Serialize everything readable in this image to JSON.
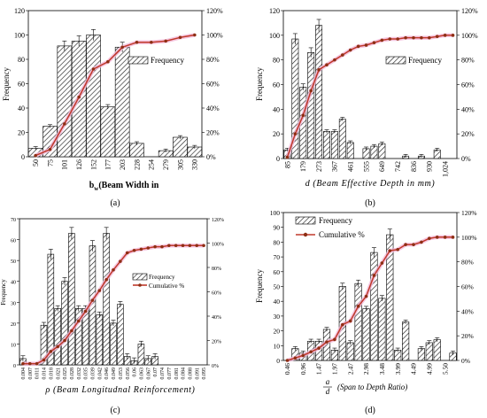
{
  "chart_data": [
    {
      "panel": "(a)",
      "type": "bar",
      "categories": [
        "50",
        "75",
        "101",
        "126",
        "152",
        "177",
        "203",
        "228",
        "254",
        "279",
        "305",
        "330"
      ],
      "series": [
        {
          "name": "Frequency",
          "type": "bar",
          "values": [
            7,
            25,
            91,
            95,
            100,
            41,
            90,
            11,
            0,
            5,
            16,
            8
          ]
        },
        {
          "name": "",
          "type": "line",
          "axis": "right",
          "values": [
            1,
            6,
            27,
            49,
            72,
            78,
            90,
            94,
            94,
            95,
            98,
            100
          ]
        }
      ],
      "ylabel": "Frequency",
      "xlabel_main": "b",
      "xlabel_sub": "w",
      "xlabel_rest": "(Beam Width in",
      "ylim": [
        0,
        120
      ],
      "y2lim": [
        0,
        120
      ],
      "yticks": [
        0,
        20,
        40,
        60,
        80,
        100,
        120
      ],
      "y2ticks": [
        0,
        20,
        40,
        60,
        80,
        100,
        120
      ],
      "y2_suffix": "%",
      "legend": "right-middle",
      "legend_entries": [
        "Frequency"
      ]
    },
    {
      "panel": "(b)",
      "type": "bar",
      "categories": [
        "85",
        "",
        "179",
        "",
        "273",
        "",
        "367",
        "",
        "461",
        "",
        "555",
        "",
        "649",
        "",
        "742",
        "",
        "836",
        "",
        "930",
        "",
        "1,024",
        ""
      ],
      "series": [
        {
          "name": "Frequency",
          "type": "bar",
          "values": [
            7,
            97,
            58,
            86,
            108,
            22,
            22,
            32,
            13,
            0,
            8,
            10,
            12,
            0,
            0,
            2,
            0,
            2,
            0,
            7,
            0,
            0
          ]
        },
        {
          "name": "",
          "type": "line",
          "axis": "right",
          "values": [
            1,
            20,
            35,
            55,
            72,
            76,
            80,
            84,
            88,
            91,
            92,
            94,
            96,
            97,
            97,
            98,
            98,
            98,
            98,
            99,
            100,
            100
          ]
        }
      ],
      "ylabel": "Frequency",
      "xlabel": "d (Beam Effective Depth in mm)",
      "ylim": [
        0,
        120
      ],
      "y2lim": [
        0,
        120
      ],
      "yticks": [
        0,
        20,
        40,
        60,
        80,
        100,
        120
      ],
      "y2ticks": [
        0,
        20,
        40,
        60,
        80,
        100,
        120
      ],
      "y2_suffix": "%",
      "legend": "right-middle",
      "legend_entries": [
        "Frequency"
      ]
    },
    {
      "panel": "(c)",
      "type": "bar",
      "categories": [
        "0.004",
        "0.007",
        "0.011",
        "0.014",
        "0.018",
        "0.021",
        "0.025",
        "0.028",
        "0.032",
        "0.035",
        "0.039",
        "0.042",
        "0.046",
        "0.049",
        "0.053",
        "0.056",
        "0.06",
        "0.063",
        "0.067",
        "0.07",
        "0.074",
        "0.077",
        "0.081",
        "0.084",
        "0.088",
        "0.091",
        "0.095"
      ],
      "series": [
        {
          "name": "Frequency",
          "type": "bar",
          "values": [
            3,
            0,
            0,
            19,
            53,
            27,
            40,
            63,
            27,
            27,
            57,
            24,
            63,
            20,
            29,
            4,
            2,
            10,
            3,
            4,
            0,
            0,
            0,
            0,
            0,
            0,
            0
          ]
        },
        {
          "name": "Cumulative %",
          "type": "line",
          "axis": "right",
          "values": [
            1,
            1,
            1,
            4,
            11,
            15,
            20,
            28,
            36,
            44,
            53,
            61,
            70,
            78,
            85,
            92,
            94,
            95,
            96,
            97,
            97,
            98,
            98,
            98,
            98,
            98,
            98
          ]
        }
      ],
      "ylabel": "Frequency",
      "xlabel": "ρ (Beam Longitudnal Reinforcement)",
      "ylim": [
        0,
        70
      ],
      "y2lim": [
        0,
        120
      ],
      "yticks": [
        0,
        10,
        20,
        30,
        40,
        50,
        60,
        70
      ],
      "y2ticks": [
        0,
        20,
        40,
        60,
        80,
        100,
        120
      ],
      "y2_suffix": "%",
      "legend": "right-middle",
      "legend_entries": [
        "Frequency",
        "Cumulative %"
      ]
    },
    {
      "panel": "(d)",
      "type": "bar",
      "categories": [
        "0.46",
        "",
        "0.96",
        "",
        "1.47",
        "",
        "1.97",
        "",
        "2.47",
        "",
        "2.98",
        "",
        "3.48",
        "",
        "3.99",
        "",
        "4.49",
        "",
        "4.99",
        "",
        "5.50",
        ""
      ],
      "series": [
        {
          "name": "Frequency",
          "type": "bar",
          "values": [
            0,
            8,
            5,
            13,
            13,
            21,
            7,
            50,
            12,
            52,
            35,
            73,
            42,
            85,
            7,
            26,
            0,
            8,
            12,
            14,
            0,
            5
          ]
        },
        {
          "name": "Cumulative %",
          "type": "line",
          "axis": "right",
          "values": [
            0,
            2,
            4,
            7,
            10,
            15,
            17,
            29,
            32,
            44,
            52,
            69,
            79,
            89,
            90,
            94,
            94,
            96,
            99,
            100,
            100,
            100
          ]
        }
      ],
      "ylabel": "Frequency",
      "xlabel_frac_top": "a",
      "xlabel_frac_bottom": "d",
      "xlabel_rest": "(Span to Depth Ratio)",
      "ylim": [
        0,
        100
      ],
      "y2lim": [
        0,
        120
      ],
      "yticks": [
        0,
        10,
        20,
        30,
        40,
        50,
        60,
        70,
        80,
        90,
        100
      ],
      "y2ticks": [
        0,
        20,
        40,
        60,
        80,
        100,
        120
      ],
      "y2_suffix": "%",
      "legend": "top-left",
      "legend_entries": [
        "Frequency",
        "Cumulative %"
      ]
    }
  ],
  "style": {
    "line_color": "#c0392b",
    "marker_color": "#8e2f14",
    "highlight_color": "#f2b8d8",
    "bar_fill": "#ffffff",
    "bar_stroke": "#000000"
  }
}
